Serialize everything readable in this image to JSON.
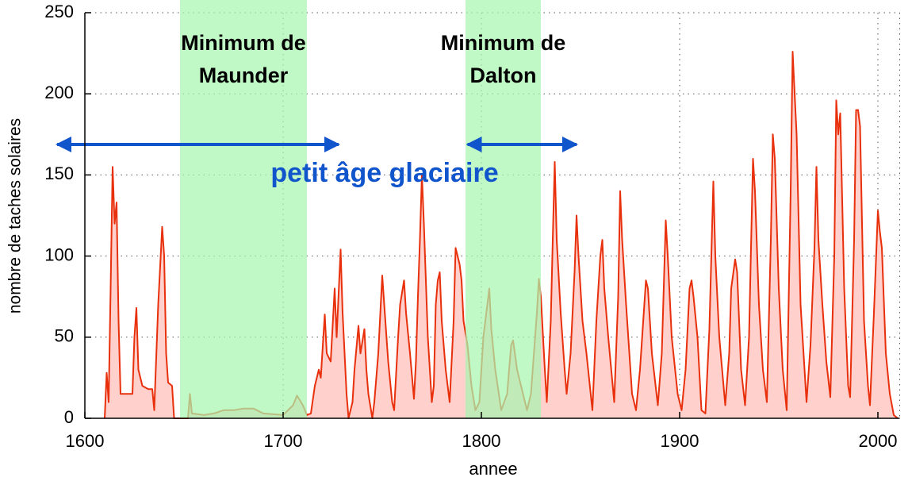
{
  "chart_data": {
    "type": "area",
    "xlabel": "annee",
    "ylabel": "nombre de taches solaires",
    "xlim": [
      1600,
      2011
    ],
    "ylim": [
      0,
      250
    ],
    "xticks": [
      1600,
      1700,
      1800,
      1900,
      2000
    ],
    "yticks": [
      0,
      50,
      100,
      150,
      200,
      250
    ],
    "grid": true,
    "color": "#e8300c",
    "fill_color": "#ffd0cc",
    "region_color": "#a8f5b0",
    "regions": [
      {
        "label": [
          "Minimum de",
          "Maunder"
        ],
        "start": 1648,
        "end": 1712
      },
      {
        "label": [
          "Minimum de",
          "Dalton"
        ],
        "start": 1792,
        "end": 1830
      }
    ],
    "arrow_label": "petit âge glaciaire",
    "arrow_color": "#1155cc",
    "arrows": [
      [
        1586,
        1728
      ],
      [
        1793,
        1848
      ]
    ],
    "x": [
      1610,
      1611,
      1612,
      1613,
      1614,
      1615,
      1616,
      1617,
      1618,
      1620,
      1624,
      1625,
      1626,
      1627,
      1629,
      1632,
      1634,
      1635,
      1637,
      1639,
      1640,
      1641,
      1642,
      1644,
      1645,
      1652,
      1653,
      1654,
      1660,
      1665,
      1670,
      1675,
      1680,
      1685,
      1690,
      1700,
      1705,
      1707,
      1710,
      1712,
      1714,
      1716,
      1718,
      1719,
      1721,
      1722,
      1724,
      1726,
      1727,
      1729,
      1730,
      1731,
      1732,
      1733,
      1735,
      1736,
      1738,
      1739,
      1741,
      1742,
      1743,
      1745,
      1746,
      1748,
      1750,
      1751,
      1753,
      1755,
      1756,
      1758,
      1759,
      1761,
      1762,
      1764,
      1766,
      1767,
      1768,
      1769,
      1770,
      1771,
      1773,
      1775,
      1776,
      1777,
      1778,
      1779,
      1780,
      1782,
      1784,
      1786,
      1787,
      1788,
      1789,
      1790,
      1791,
      1793,
      1795,
      1797,
      1799,
      1801,
      1802,
      1804,
      1805,
      1807,
      1810,
      1813,
      1815,
      1816,
      1818,
      1820,
      1823,
      1825,
      1828,
      1829,
      1830,
      1832,
      1833,
      1835,
      1836,
      1837,
      1838,
      1840,
      1842,
      1843,
      1845,
      1847,
      1848,
      1849,
      1851,
      1853,
      1856,
      1858,
      1860,
      1861,
      1862,
      1864,
      1867,
      1869,
      1870,
      1871,
      1873,
      1876,
      1878,
      1880,
      1883,
      1884,
      1886,
      1889,
      1891,
      1893,
      1894,
      1896,
      1899,
      1901,
      1903,
      1905,
      1906,
      1907,
      1909,
      1911,
      1913,
      1915,
      1917,
      1918,
      1920,
      1923,
      1925,
      1926,
      1928,
      1929,
      1931,
      1933,
      1935,
      1937,
      1938,
      1940,
      1942,
      1944,
      1946,
      1947,
      1948,
      1950,
      1952,
      1954,
      1956,
      1957,
      1958,
      1959,
      1961,
      1963,
      1964,
      1966,
      1968,
      1969,
      1970,
      1972,
      1974,
      1976,
      1978,
      1979,
      1980,
      1981,
      1983,
      1985,
      1986,
      1988,
      1989,
      1990,
      1991,
      1993,
      1995,
      1996,
      1998,
      2000,
      2001,
      2002,
      2004,
      2006,
      2008,
      2010
    ],
    "values": [
      0,
      28,
      10,
      80,
      155,
      120,
      133,
      60,
      15,
      15,
      15,
      50,
      68,
      30,
      20,
      18,
      18,
      5,
      70,
      118,
      100,
      40,
      22,
      20,
      0,
      0,
      15,
      3,
      2,
      3,
      5,
      5,
      6,
      6,
      3,
      2,
      8,
      14,
      8,
      2,
      3,
      20,
      30,
      25,
      64,
      40,
      35,
      80,
      50,
      104,
      65,
      40,
      15,
      0,
      10,
      30,
      57,
      40,
      55,
      30,
      15,
      0,
      10,
      40,
      88,
      70,
      35,
      10,
      5,
      50,
      70,
      85,
      65,
      40,
      12,
      35,
      75,
      110,
      150,
      120,
      50,
      10,
      20,
      70,
      85,
      90,
      60,
      30,
      10,
      60,
      105,
      100,
      95,
      85,
      60,
      45,
      20,
      5,
      10,
      50,
      60,
      80,
      55,
      30,
      5,
      15,
      45,
      48,
      30,
      20,
      5,
      15,
      65,
      86,
      75,
      30,
      10,
      60,
      110,
      158,
      110,
      65,
      30,
      15,
      40,
      90,
      125,
      100,
      60,
      40,
      5,
      60,
      100,
      110,
      80,
      50,
      10,
      75,
      140,
      110,
      70,
      15,
      5,
      30,
      85,
      80,
      40,
      8,
      40,
      122,
      100,
      50,
      15,
      5,
      30,
      80,
      85,
      75,
      50,
      5,
      3,
      55,
      146,
      100,
      50,
      8,
      40,
      80,
      98,
      90,
      30,
      8,
      50,
      160,
      140,
      70,
      30,
      10,
      110,
      175,
      160,
      80,
      30,
      5,
      140,
      226,
      200,
      175,
      70,
      30,
      10,
      45,
      105,
      155,
      110,
      70,
      35,
      13,
      100,
      196,
      175,
      188,
      80,
      20,
      13,
      110,
      190,
      190,
      180,
      60,
      20,
      8,
      65,
      128,
      115,
      105,
      40,
      15,
      2,
      0
    ]
  }
}
